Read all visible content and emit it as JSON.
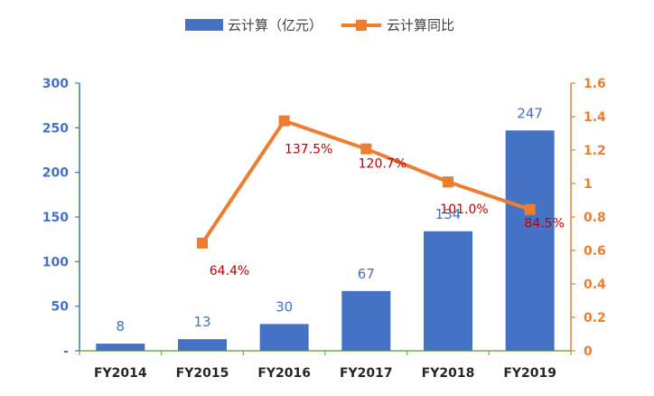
{
  "chart_data": {
    "type": "bar+line",
    "categories": [
      "FY2014",
      "FY2015",
      "FY2016",
      "FY2017",
      "FY2018",
      "FY2019"
    ],
    "series": [
      {
        "name": "云计算（亿元）",
        "type": "bar",
        "axis": "left",
        "values": [
          8,
          13,
          30,
          67,
          134,
          247
        ],
        "labels": [
          "8",
          "13",
          "30",
          "67",
          "134",
          "247"
        ]
      },
      {
        "name": "云计算同比",
        "type": "line",
        "axis": "right",
        "values": [
          null,
          0.644,
          1.375,
          1.207,
          1.01,
          0.845
        ],
        "labels": [
          "",
          "64.4%",
          "137.5%",
          "120.7%",
          "101.0%",
          "84.5%"
        ]
      }
    ],
    "y_left": {
      "range": [
        0,
        300
      ],
      "ticks": [
        "-",
        "50",
        "100",
        "150",
        "200",
        "250",
        "300"
      ]
    },
    "y_right": {
      "range": [
        0,
        1.6
      ],
      "ticks": [
        "0",
        "0.2",
        "0.4",
        "0.6",
        "0.8",
        "1",
        "1.2",
        "1.4",
        "1.6"
      ]
    },
    "legend_position": "top-center",
    "grid": false,
    "colors": {
      "bar": "#4472c4",
      "line": "#ed7d31",
      "line_label": "#c00000",
      "axis_left": "#4472c4",
      "axis_right": "#ed7d31",
      "x_axis": "#70ad47"
    }
  }
}
